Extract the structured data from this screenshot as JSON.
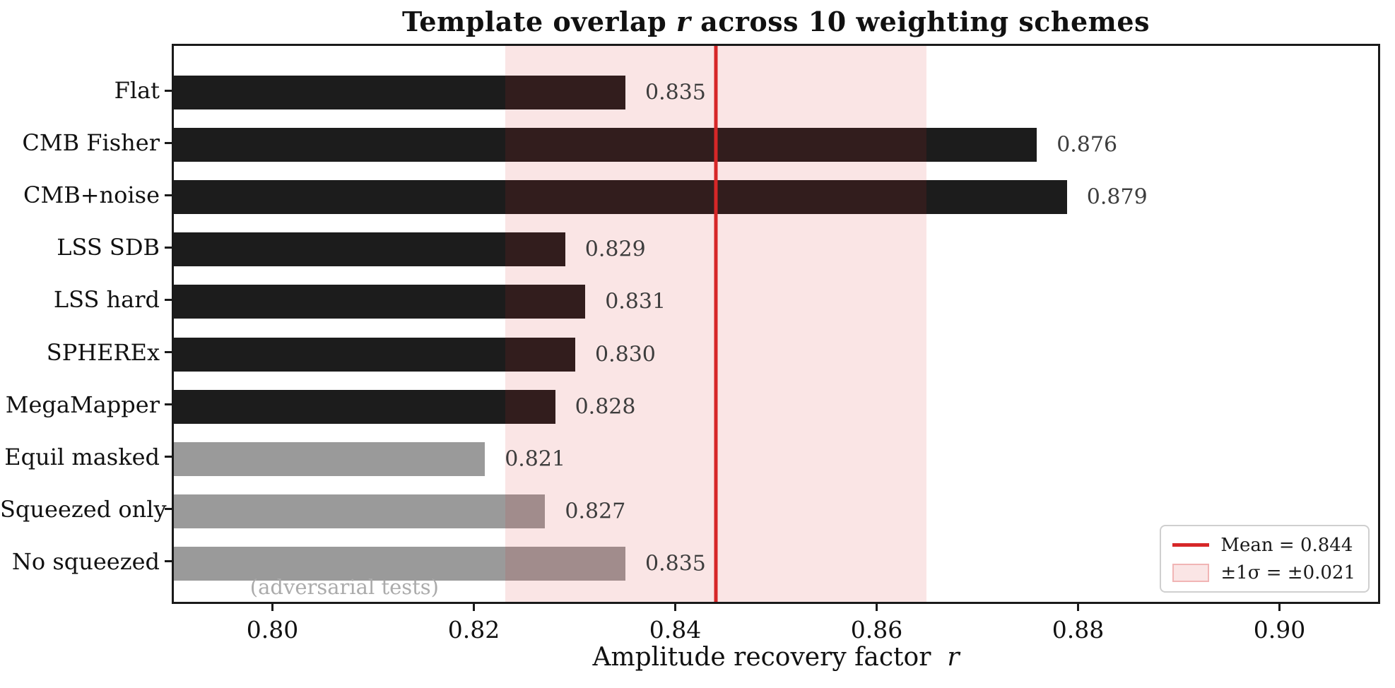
{
  "chart_data": {
    "type": "bar",
    "orientation": "horizontal",
    "title": "Template overlap r across 10 weighting schemes",
    "title_parts": {
      "prefix": "Template overlap ",
      "italic": "r",
      "suffix": " across 10 weighting schemes"
    },
    "xlabel": "Amplitude recovery factor r",
    "xlabel_parts": {
      "prefix": "Amplitude recovery factor ",
      "italic": "r"
    },
    "categories": [
      "Flat",
      "CMB Fisher",
      "CMB+noise",
      "LSS SDB",
      "LSS hard",
      "SPHEREx",
      "MegaMapper",
      "Equil masked",
      "Squeezed only",
      "No squeezed"
    ],
    "values": [
      0.835,
      0.876,
      0.879,
      0.829,
      0.831,
      0.83,
      0.828,
      0.821,
      0.827,
      0.835
    ],
    "value_labels": [
      "0.835",
      "0.876",
      "0.879",
      "0.829",
      "0.831",
      "0.830",
      "0.828",
      "0.821",
      "0.827",
      "0.835"
    ],
    "bar_colors": [
      "#1c1c1c",
      "#1c1c1c",
      "#1c1c1c",
      "#1c1c1c",
      "#1c1c1c",
      "#1c1c1c",
      "#1c1c1c",
      "#9a9a9a",
      "#9a9a9a",
      "#9a9a9a"
    ],
    "xlim": [
      0.79,
      0.91
    ],
    "xticks": [
      0.8,
      0.82,
      0.84,
      0.86,
      0.88,
      0.9
    ],
    "xtick_labels": [
      "0.80",
      "0.82",
      "0.84",
      "0.86",
      "0.88",
      "0.90"
    ],
    "grid": false,
    "mean": 0.844,
    "sigma": 0.021,
    "band_range": [
      0.823,
      0.865
    ],
    "mean_line_color": "#d62728",
    "band_color": "rgba(214,39,40,0.12)",
    "value_label_color": "#3d3d3d",
    "annotation": {
      "text": "(adversarial tests)",
      "x": 0.807,
      "color": "#ababab"
    },
    "legend": {
      "position": "lower right",
      "mean_label": "Mean = 0.844",
      "band_label": "±1σ = ±0.021"
    }
  }
}
